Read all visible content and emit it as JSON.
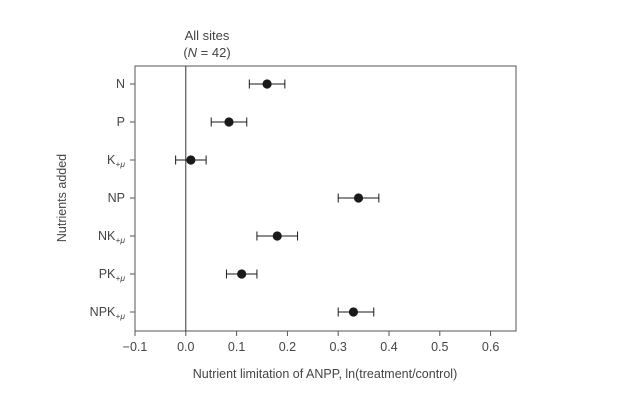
{
  "chart_data": {
    "type": "scatter",
    "title": "All sites",
    "subtitle_prefix": "(",
    "subtitle_italic": "N",
    "subtitle_suffix": " = 42)",
    "xlabel": "Nutrient limitation of ANPP, ln(treatment/control)",
    "ylabel": "Nutrients added",
    "xlim": [
      -0.1,
      0.65
    ],
    "xticks": [
      -0.1,
      0.0,
      0.1,
      0.2,
      0.3,
      0.4,
      0.5,
      0.6
    ],
    "xtick_labels": [
      "−0.1",
      "0.0",
      "0.1",
      "0.2",
      "0.3",
      "0.4",
      "0.5",
      "0.6"
    ],
    "reference_line_x": 0,
    "categories": [
      {
        "base": "N",
        "sub": ""
      },
      {
        "base": "P",
        "sub": ""
      },
      {
        "base": "K",
        "sub": "+μ"
      },
      {
        "base": "NP",
        "sub": ""
      },
      {
        "base": "NK",
        "sub": "+μ"
      },
      {
        "base": "PK",
        "sub": "+μ"
      },
      {
        "base": "NPK",
        "sub": "+μ"
      }
    ],
    "values": [
      0.16,
      0.085,
      0.01,
      0.34,
      0.18,
      0.11,
      0.33
    ],
    "ci_low": [
      0.125,
      0.05,
      -0.02,
      0.3,
      0.14,
      0.08,
      0.3
    ],
    "ci_high": [
      0.195,
      0.12,
      0.04,
      0.38,
      0.22,
      0.14,
      0.37
    ],
    "grid": false,
    "legend": "none",
    "colors": {
      "point": "#1a1a1a",
      "axis": "#555555"
    }
  }
}
